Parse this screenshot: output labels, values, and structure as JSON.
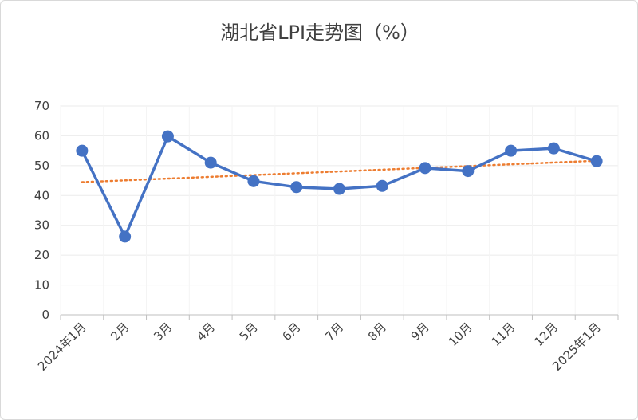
{
  "chart_data": {
    "type": "line",
    "title": "湖北省LPI走势图（%）",
    "categories": [
      "2024年1月",
      "2月",
      "3月",
      "4月",
      "5月",
      "6月",
      "7月",
      "8月",
      "9月",
      "10月",
      "11月",
      "12月",
      "2025年1月"
    ],
    "series": [
      {
        "values": [
          55,
          26.2,
          59.8,
          51,
          44.8,
          42.8,
          42.2,
          43.2,
          49.2,
          48.2,
          55,
          55.8,
          51.5
        ],
        "color": "#4472c4"
      }
    ],
    "trendline": {
      "type": "linear",
      "style": "dotted",
      "color": "#ed7d31"
    },
    "ylim": [
      0,
      70
    ],
    "yticks": [
      0,
      10,
      20,
      30,
      40,
      50,
      60,
      70
    ],
    "xlabel": "",
    "ylabel": "",
    "grid": true,
    "legend": "none"
  }
}
